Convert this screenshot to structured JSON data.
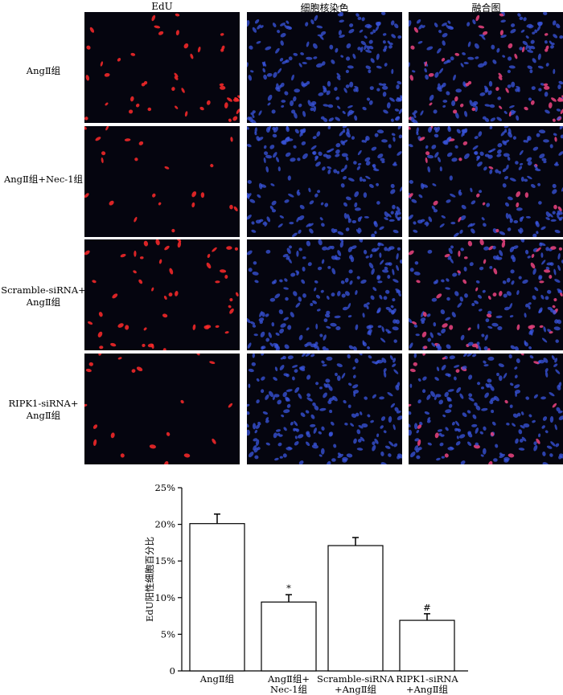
{
  "figure": {
    "column_headers": [
      "EdU",
      "细胞核染色",
      "融合图"
    ],
    "rows": [
      {
        "label_lines": [
          "AngⅡ组"
        ],
        "edu_positive": "high"
      },
      {
        "label_lines": [
          "AngⅡ组+Nec-1组"
        ],
        "edu_positive": "low"
      },
      {
        "label_lines": [
          "Scramble-siRNA+",
          "AngⅡ组"
        ],
        "edu_positive": "high"
      },
      {
        "label_lines": [
          "RIPK1-siRNA+",
          "AngⅡ组"
        ],
        "edu_positive": "low"
      }
    ],
    "colors": {
      "edu": "#ff2a2a",
      "nucleus": "#3a55e0",
      "background": "#05050f",
      "bar_fill": "#ffffff"
    }
  },
  "chart_data": {
    "type": "bar",
    "categories": [
      [
        "AngⅡ组"
      ],
      [
        "AngⅡ组+",
        "Nec-1组"
      ],
      [
        "Scramble-siRNA",
        "+AngⅡ组"
      ],
      [
        "RIPK1-siRNA",
        "+AngⅡ组"
      ]
    ],
    "values": [
      20.1,
      9.4,
      17.1,
      6.9
    ],
    "errors": [
      1.3,
      1.0,
      1.1,
      0.9
    ],
    "annotations": [
      "",
      "*",
      "",
      "#"
    ],
    "ylabel": "EdU阳性细胞百分比",
    "xlabel": "",
    "ylim": [
      0,
      25
    ],
    "yticks": [
      "0",
      "5%",
      "10%",
      "15%",
      "20%",
      "25%"
    ],
    "ytick_values": [
      0,
      5,
      10,
      15,
      20,
      25
    ],
    "grid": false
  }
}
